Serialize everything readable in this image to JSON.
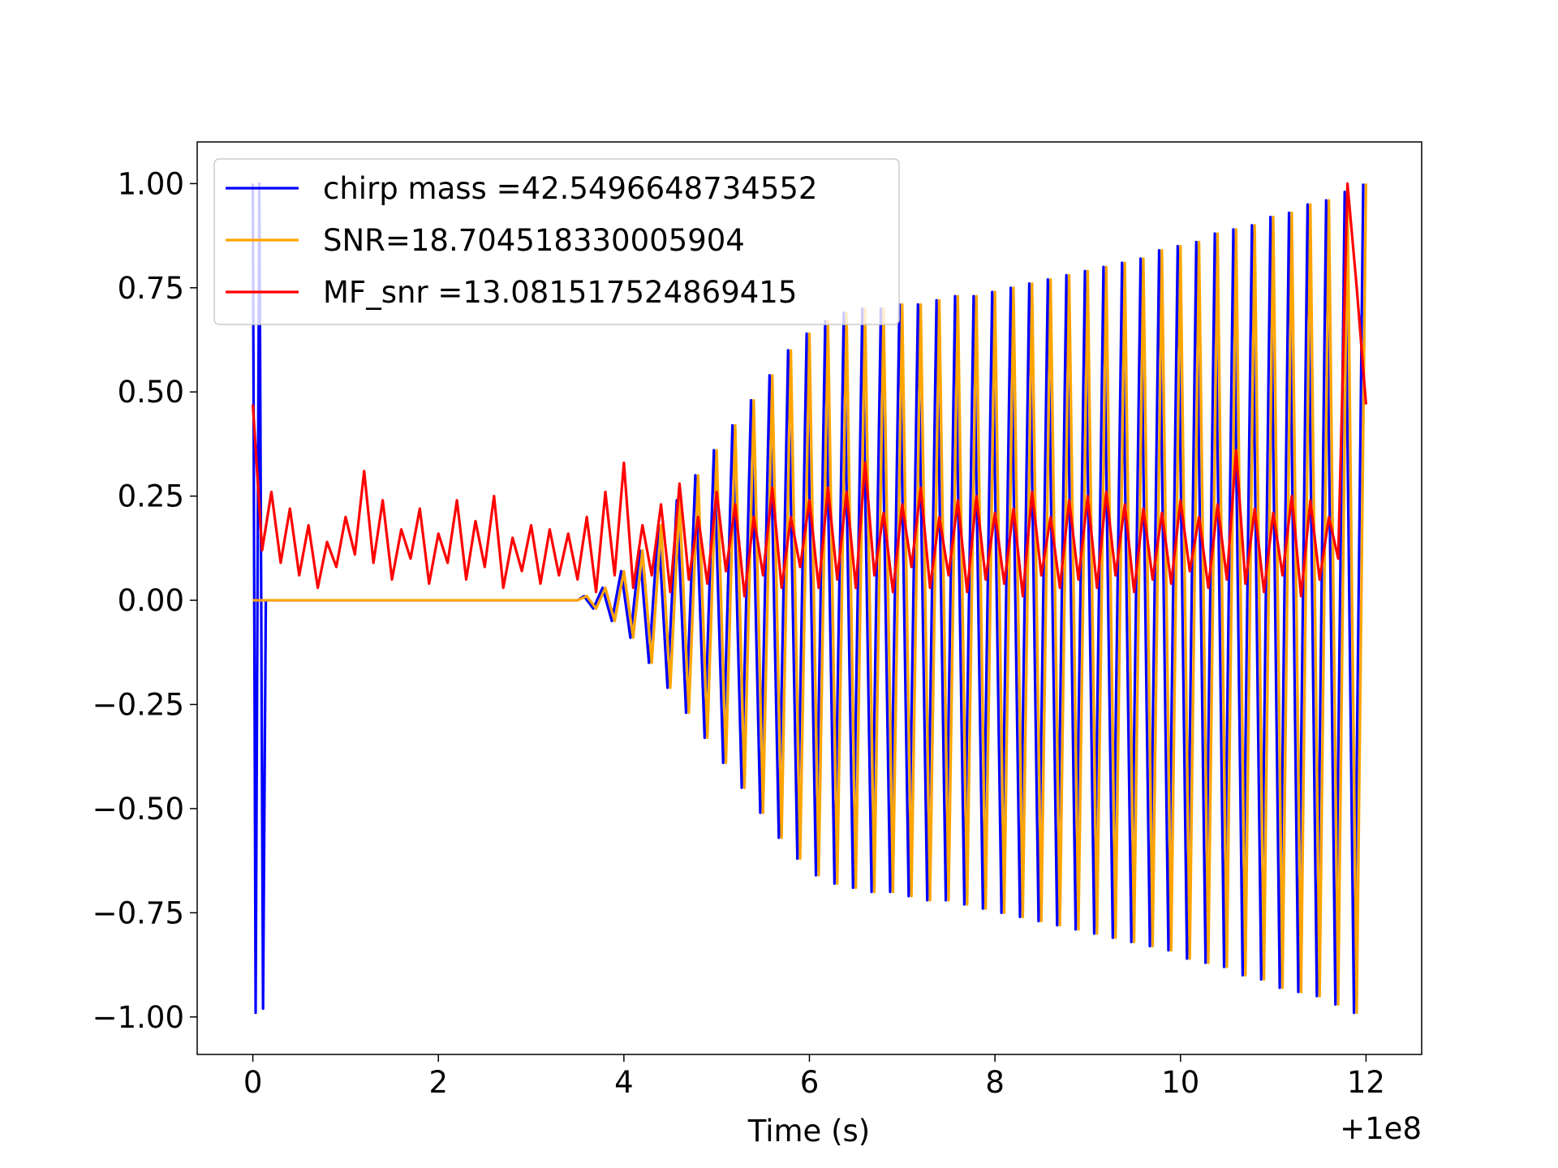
{
  "chart_data": {
    "type": "line",
    "x_label": "Time (s)",
    "x_offset_label": "+1e8",
    "xlim": [
      -0.6,
      12.6
    ],
    "ylim": [
      -1.09,
      1.1
    ],
    "xticks": [
      0,
      2,
      4,
      6,
      8,
      10,
      12
    ],
    "yticks": [
      {
        "value": -1.0,
        "label": "−1.00"
      },
      {
        "value": -0.75,
        "label": "−0.75"
      },
      {
        "value": -0.5,
        "label": "−0.50"
      },
      {
        "value": -0.25,
        "label": "−0.25"
      },
      {
        "value": 0,
        "label": "0.00"
      },
      {
        "value": 0.25,
        "label": "0.25"
      },
      {
        "value": 0.5,
        "label": "0.50"
      },
      {
        "value": 0.75,
        "label": "0.75"
      },
      {
        "value": 1.0,
        "label": "1.00"
      }
    ],
    "grid": false,
    "legend": "upper left",
    "series": [
      {
        "name": "chirp mass =42.5496648734552",
        "color": "#0000ff",
        "x": [
          0,
          0.03,
          0.07,
          0.11,
          0.14,
          3.5,
          3.57,
          3.67,
          3.77,
          3.87,
          3.97,
          4.07,
          4.17,
          4.27,
          4.37,
          4.47,
          4.57,
          4.67,
          4.77,
          4.87,
          4.97,
          5.07,
          5.17,
          5.27,
          5.37,
          5.47,
          5.57,
          5.67,
          5.77,
          5.87,
          5.97,
          6.07,
          6.17,
          6.27,
          6.37,
          6.47,
          6.57,
          6.67,
          6.77,
          6.87,
          6.97,
          7.07,
          7.17,
          7.27,
          7.37,
          7.47,
          7.57,
          7.67,
          7.77,
          7.87,
          7.97,
          8.07,
          8.17,
          8.27,
          8.37,
          8.47,
          8.57,
          8.67,
          8.77,
          8.87,
          8.97,
          9.07,
          9.17,
          9.27,
          9.37,
          9.47,
          9.57,
          9.67,
          9.77,
          9.87,
          9.97,
          10.07,
          10.17,
          10.27,
          10.37,
          10.47,
          10.57,
          10.67,
          10.77,
          10.87,
          10.97,
          11.07,
          11.17,
          11.27,
          11.37,
          11.47,
          11.57,
          11.67,
          11.77,
          11.87,
          11.97
        ],
        "values": [
          1.0,
          -0.99,
          1.0,
          -0.98,
          0,
          0,
          0.01,
          -0.02,
          0.03,
          -0.05,
          0.07,
          -0.09,
          0.12,
          -0.15,
          0.18,
          -0.21,
          0.24,
          -0.27,
          0.3,
          -0.33,
          0.36,
          -0.39,
          0.42,
          -0.45,
          0.48,
          -0.51,
          0.54,
          -0.57,
          0.6,
          -0.62,
          0.64,
          -0.66,
          0.67,
          -0.68,
          0.69,
          -0.69,
          0.7,
          -0.7,
          0.7,
          -0.7,
          0.71,
          -0.71,
          0.71,
          -0.72,
          0.72,
          -0.72,
          0.73,
          -0.73,
          0.73,
          -0.74,
          0.74,
          -0.75,
          0.75,
          -0.76,
          0.76,
          -0.77,
          0.77,
          -0.78,
          0.78,
          -0.79,
          0.79,
          -0.8,
          0.8,
          -0.81,
          0.81,
          -0.82,
          0.82,
          -0.83,
          0.84,
          -0.84,
          0.85,
          -0.86,
          0.86,
          -0.87,
          0.88,
          -0.88,
          0.89,
          -0.9,
          0.9,
          -0.91,
          0.92,
          -0.93,
          0.93,
          -0.94,
          0.95,
          -0.95,
          0.96,
          -0.97,
          0.98,
          -0.99,
          1.0
        ]
      },
      {
        "name": "SNR=18.704518330005904",
        "color": "#ffa500",
        "x": [
          0,
          3.5,
          3.6,
          3.7,
          3.8,
          3.9,
          4.0,
          4.1,
          4.2,
          4.3,
          4.4,
          4.5,
          4.6,
          4.7,
          4.8,
          4.9,
          5.0,
          5.1,
          5.2,
          5.3,
          5.4,
          5.5,
          5.6,
          5.7,
          5.8,
          5.9,
          6.0,
          6.1,
          6.2,
          6.3,
          6.4,
          6.5,
          6.6,
          6.7,
          6.8,
          6.9,
          7.0,
          7.1,
          7.2,
          7.3,
          7.4,
          7.5,
          7.6,
          7.7,
          7.8,
          7.9,
          8.0,
          8.1,
          8.2,
          8.3,
          8.4,
          8.5,
          8.6,
          8.7,
          8.8,
          8.9,
          9.0,
          9.1,
          9.2,
          9.3,
          9.4,
          9.5,
          9.6,
          9.7,
          9.8,
          9.9,
          10.0,
          10.1,
          10.2,
          10.3,
          10.4,
          10.5,
          10.6,
          10.7,
          10.8,
          10.9,
          11.0,
          11.1,
          11.2,
          11.3,
          11.4,
          11.5,
          11.6,
          11.7,
          11.8,
          11.9,
          12.0
        ],
        "values": [
          0,
          0,
          0.01,
          -0.02,
          0.03,
          -0.05,
          0.07,
          -0.09,
          0.12,
          -0.15,
          0.18,
          -0.21,
          0.24,
          -0.27,
          0.3,
          -0.33,
          0.36,
          -0.39,
          0.42,
          -0.45,
          0.48,
          -0.51,
          0.54,
          -0.57,
          0.6,
          -0.62,
          0.64,
          -0.66,
          0.67,
          -0.68,
          0.69,
          -0.69,
          0.7,
          -0.7,
          0.7,
          -0.7,
          0.71,
          -0.71,
          0.71,
          -0.72,
          0.72,
          -0.72,
          0.73,
          -0.73,
          0.73,
          -0.74,
          0.74,
          -0.75,
          0.75,
          -0.76,
          0.76,
          -0.77,
          0.77,
          -0.78,
          0.78,
          -0.79,
          0.79,
          -0.8,
          0.8,
          -0.81,
          0.81,
          -0.82,
          0.82,
          -0.83,
          0.84,
          -0.84,
          0.85,
          -0.86,
          0.86,
          -0.87,
          0.88,
          -0.88,
          0.89,
          -0.9,
          0.9,
          -0.91,
          0.92,
          -0.93,
          0.93,
          -0.94,
          0.95,
          -0.95,
          0.96,
          -0.97,
          0.98,
          -0.99,
          1.0
        ]
      },
      {
        "name": "MF_snr =13.081517524869415",
        "color": "#ff0000",
        "x": [
          0,
          0.1,
          0.2,
          0.3,
          0.4,
          0.5,
          0.6,
          0.7,
          0.8,
          0.9,
          1.0,
          1.1,
          1.2,
          1.3,
          1.4,
          1.5,
          1.6,
          1.7,
          1.8,
          1.9,
          2.0,
          2.1,
          2.2,
          2.3,
          2.4,
          2.5,
          2.6,
          2.7,
          2.8,
          2.9,
          3.0,
          3.1,
          3.2,
          3.3,
          3.4,
          3.5,
          3.6,
          3.7,
          3.8,
          3.9,
          4.0,
          4.1,
          4.2,
          4.3,
          4.4,
          4.5,
          4.6,
          4.7,
          4.8,
          4.9,
          5.0,
          5.1,
          5.2,
          5.3,
          5.4,
          5.5,
          5.6,
          5.7,
          5.8,
          5.9,
          6.0,
          6.1,
          6.2,
          6.3,
          6.4,
          6.5,
          6.6,
          6.7,
          6.8,
          6.9,
          7.0,
          7.1,
          7.2,
          7.3,
          7.4,
          7.5,
          7.6,
          7.7,
          7.8,
          7.9,
          8.0,
          8.1,
          8.2,
          8.3,
          8.4,
          8.5,
          8.6,
          8.7,
          8.8,
          8.9,
          9.0,
          9.1,
          9.2,
          9.3,
          9.4,
          9.5,
          9.6,
          9.7,
          9.8,
          9.9,
          10.0,
          10.1,
          10.2,
          10.3,
          10.4,
          10.5,
          10.6,
          10.7,
          10.8,
          10.9,
          11.0,
          11.1,
          11.2,
          11.3,
          11.4,
          11.5,
          11.6,
          11.7,
          11.8,
          11.9,
          12.0
        ],
        "values": [
          0.47,
          0.12,
          0.26,
          0.09,
          0.22,
          0.06,
          0.18,
          0.03,
          0.14,
          0.08,
          0.2,
          0.11,
          0.31,
          0.09,
          0.24,
          0.05,
          0.17,
          0.1,
          0.22,
          0.04,
          0.16,
          0.09,
          0.24,
          0.05,
          0.19,
          0.08,
          0.25,
          0.03,
          0.15,
          0.07,
          0.18,
          0.04,
          0.17,
          0.06,
          0.16,
          0.05,
          0.2,
          0.02,
          0.26,
          0.06,
          0.33,
          0.03,
          0.18,
          0.06,
          0.23,
          0.02,
          0.28,
          0.05,
          0.2,
          0.04,
          0.26,
          0.07,
          0.23,
          0.01,
          0.2,
          0.06,
          0.27,
          0.03,
          0.2,
          0.08,
          0.24,
          0.03,
          0.27,
          0.05,
          0.26,
          0.03,
          0.33,
          0.06,
          0.21,
          0.02,
          0.23,
          0.08,
          0.27,
          0.03,
          0.2,
          0.06,
          0.24,
          0.02,
          0.25,
          0.05,
          0.21,
          0.04,
          0.22,
          0.01,
          0.26,
          0.06,
          0.2,
          0.03,
          0.24,
          0.05,
          0.25,
          0.03,
          0.26,
          0.06,
          0.23,
          0.02,
          0.22,
          0.05,
          0.21,
          0.04,
          0.24,
          0.07,
          0.2,
          0.03,
          0.23,
          0.05,
          0.36,
          0.04,
          0.22,
          0.02,
          0.21,
          0.06,
          0.25,
          0.01,
          0.24,
          0.05,
          0.2,
          0.1,
          1.0,
          0.75,
          0.47
        ]
      }
    ]
  }
}
